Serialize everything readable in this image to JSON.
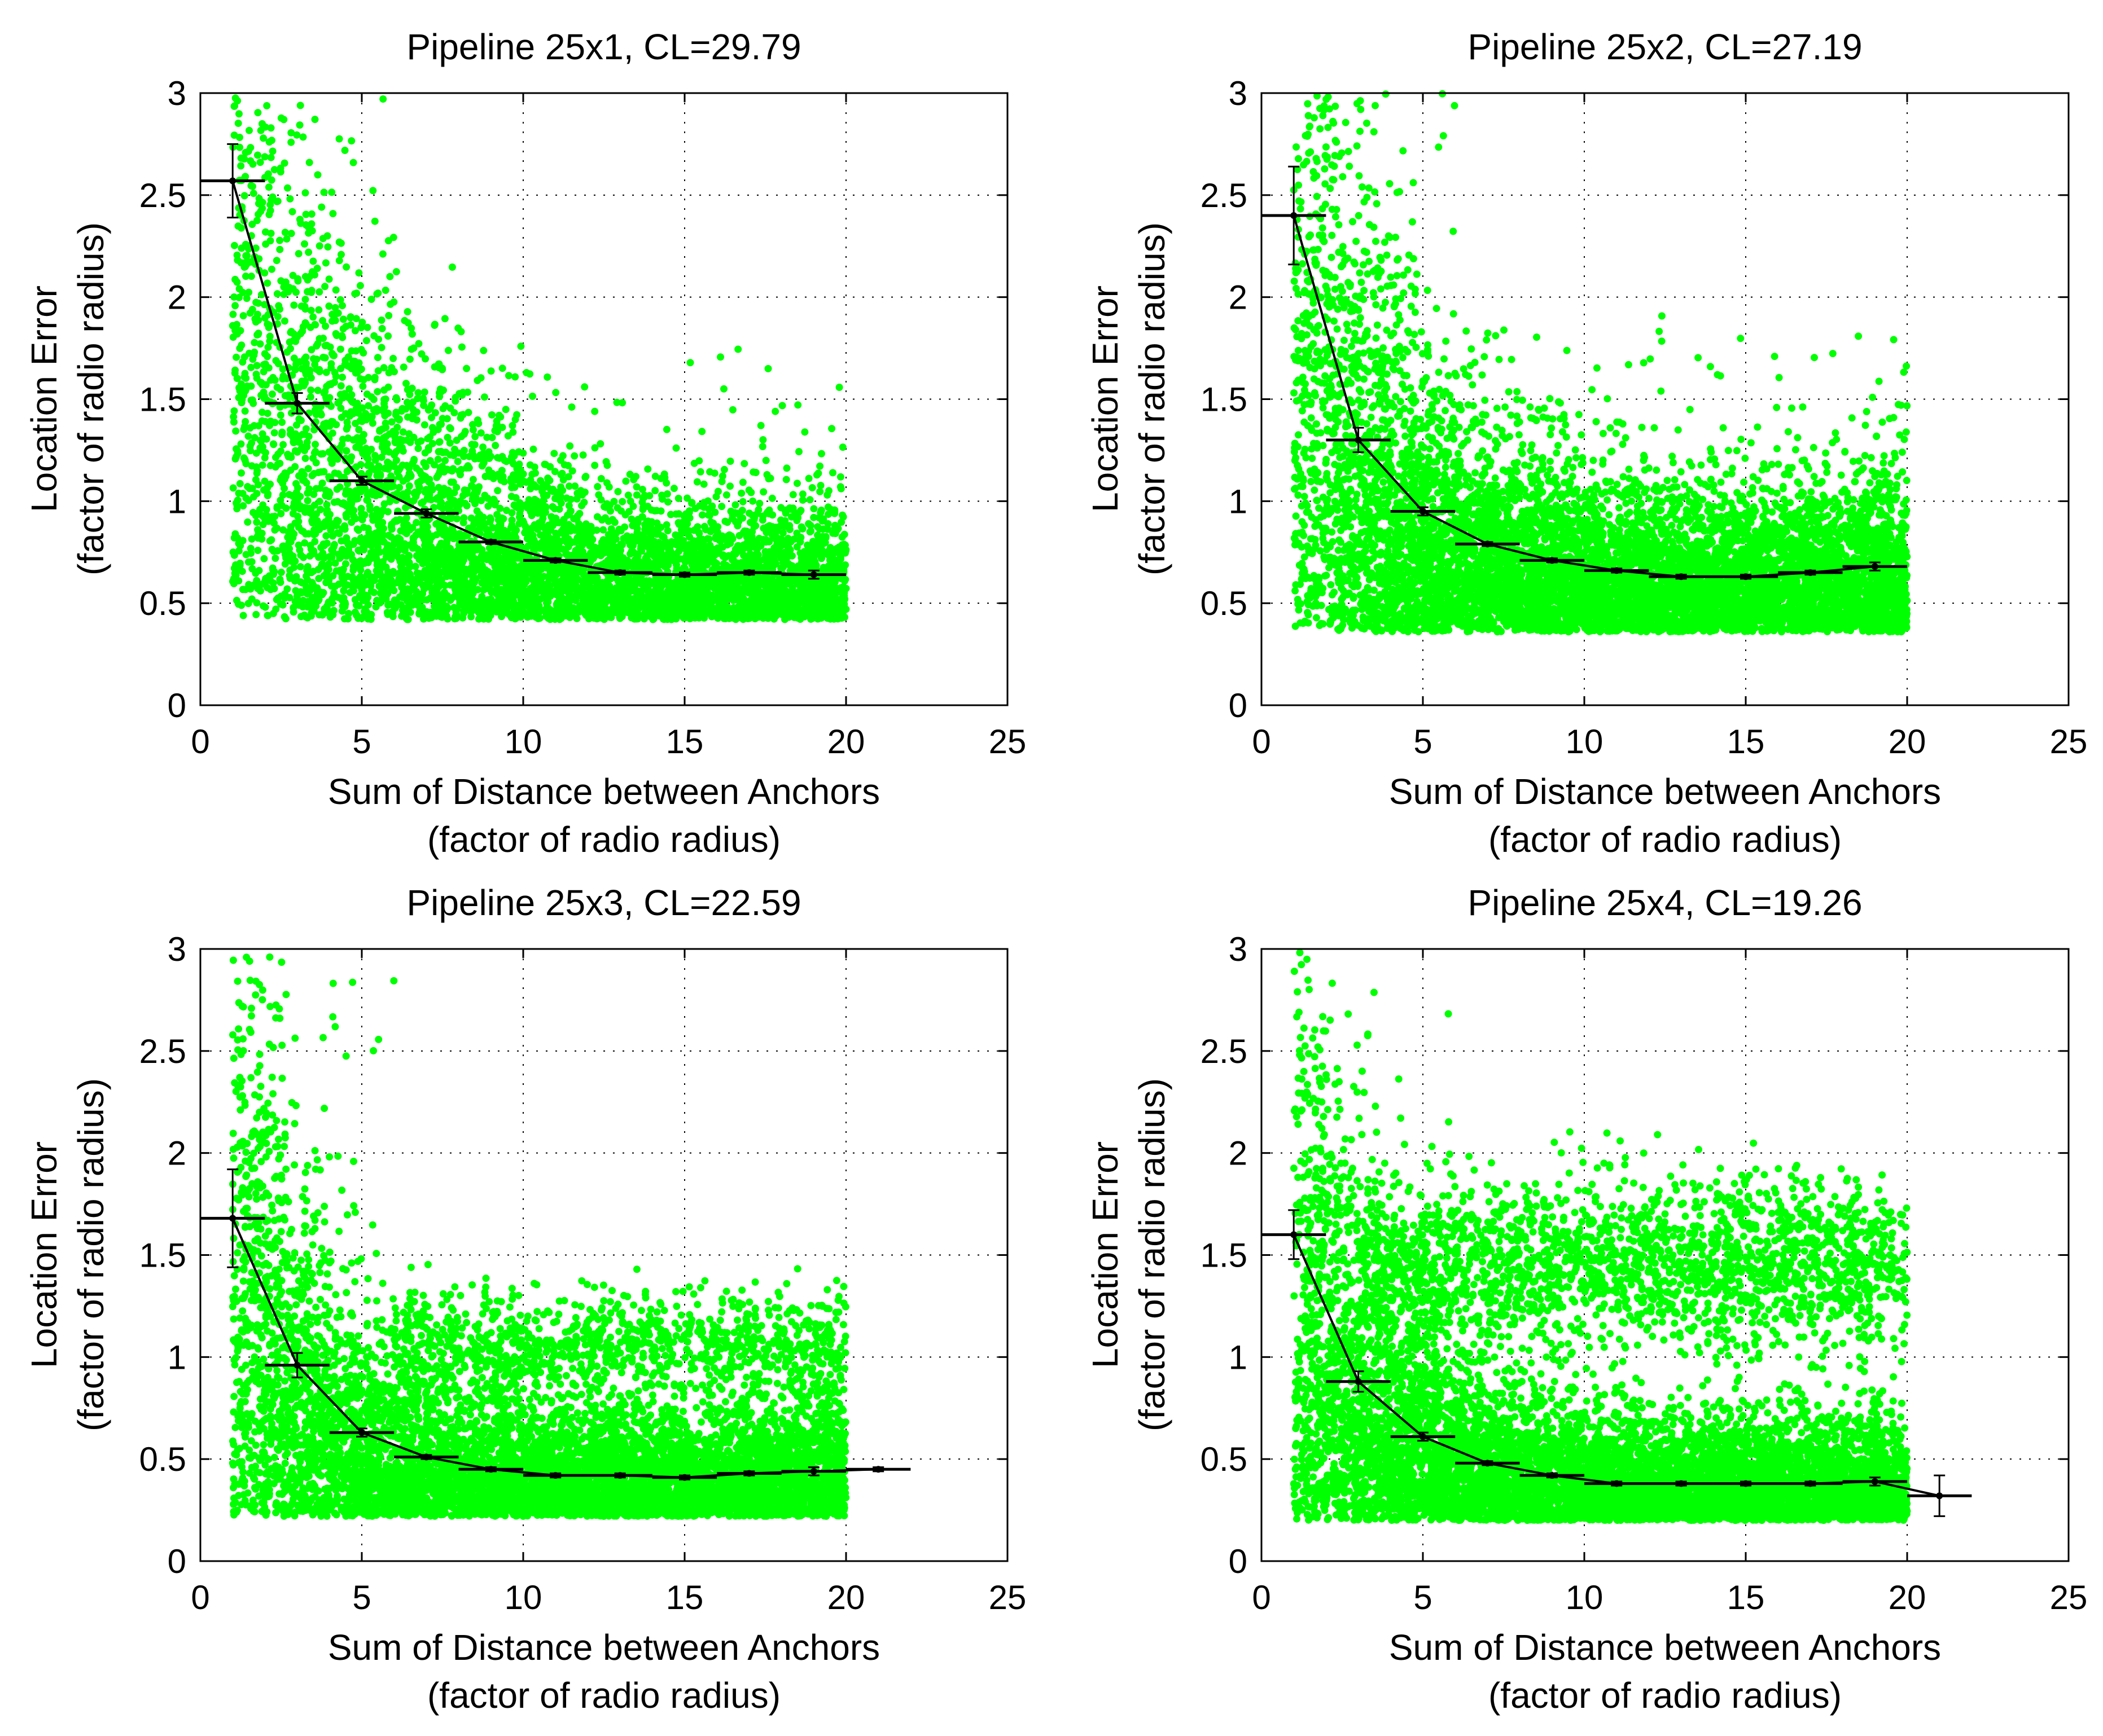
{
  "chart_data": [
    {
      "type": "scatter",
      "title": "Pipeline 25x1, CL=29.79",
      "xlabel": [
        "Sum of Distance between Anchors",
        "(factor of radio radius)"
      ],
      "ylabel": [
        "Location Error",
        "(factor of radio radius)"
      ],
      "xlim": [
        0,
        25
      ],
      "ylim": [
        0,
        3
      ],
      "xticks": [
        0,
        5,
        10,
        15,
        20,
        25
      ],
      "yticks": [
        0,
        0.5,
        1,
        1.5,
        2,
        2.5,
        3
      ],
      "xtick_labels": [
        "0",
        "5",
        "10",
        "15",
        "20",
        "25"
      ],
      "ytick_labels": [
        "0",
        "0.5",
        "1",
        "1.5",
        "2",
        "2.5",
        "3"
      ],
      "grid": "dotted",
      "scatter_color": "#00ff00",
      "scatter_x_range": [
        0.8,
        20
      ],
      "scatter_clusters": [
        {
          "from": 1,
          "to": 20,
          "lower": 0.42,
          "level": 0.6,
          "decay_start": 2.0,
          "decay_rate": 0.28,
          "count": 6000
        }
      ],
      "binned_means": {
        "x": [
          1,
          3,
          5,
          7,
          9,
          11,
          13,
          15,
          17,
          19
        ],
        "y": [
          2.57,
          1.48,
          1.1,
          0.94,
          0.8,
          0.71,
          0.65,
          0.64,
          0.65,
          0.64
        ],
        "y_err": [
          0.18,
          0.05,
          0.02,
          0.02,
          0.01,
          0.01,
          0.01,
          0.01,
          0.01,
          0.02
        ],
        "x_halfwidth": 1
      }
    },
    {
      "type": "scatter",
      "title": "Pipeline 25x2, CL=27.19",
      "xlabel": [
        "Sum of Distance between Anchors",
        "(factor of radio radius)"
      ],
      "ylabel": [
        "Location Error",
        "(factor of radio radius)"
      ],
      "xlim": [
        0,
        25
      ],
      "ylim": [
        0,
        3
      ],
      "xticks": [
        0,
        5,
        10,
        15,
        20,
        25
      ],
      "yticks": [
        0,
        0.5,
        1,
        1.5,
        2,
        2.5,
        3
      ],
      "xtick_labels": [
        "0",
        "5",
        "10",
        "15",
        "20",
        "25"
      ],
      "ytick_labels": [
        "0",
        "0.5",
        "1",
        "1.5",
        "2",
        "2.5",
        "3"
      ],
      "grid": "dotted",
      "scatter_color": "#00ff00",
      "scatter_x_range": [
        0.8,
        20
      ],
      "scatter_clusters": [
        {
          "from": 1,
          "to": 20,
          "lower": 0.36,
          "level": 0.75,
          "decay_start": 2.0,
          "decay_rate": 0.25,
          "count": 8000
        }
      ],
      "binned_means": {
        "x": [
          1,
          3,
          5,
          7,
          9,
          11,
          13,
          15,
          17,
          19
        ],
        "y": [
          2.4,
          1.3,
          0.95,
          0.79,
          0.71,
          0.66,
          0.63,
          0.63,
          0.65,
          0.68
        ],
        "y_err": [
          0.24,
          0.06,
          0.02,
          0.01,
          0.01,
          0.01,
          0.01,
          0.01,
          0.01,
          0.02
        ],
        "x_halfwidth": 1
      }
    },
    {
      "type": "scatter",
      "title": "Pipeline 25x3, CL=22.59",
      "xlabel": [
        "Sum of Distance between Anchors",
        "(factor of radio radius)"
      ],
      "ylabel": [
        "Location Error",
        "(factor of radio radius)"
      ],
      "xlim": [
        0,
        25
      ],
      "ylim": [
        0,
        3
      ],
      "xticks": [
        0,
        5,
        10,
        15,
        20,
        25
      ],
      "yticks": [
        0,
        0.5,
        1,
        1.5,
        2,
        2.5,
        3
      ],
      "xtick_labels": [
        "0",
        "5",
        "10",
        "15",
        "20",
        "25"
      ],
      "ytick_labels": [
        "0",
        "0.5",
        "1",
        "1.5",
        "2",
        "2.5",
        "3"
      ],
      "grid": "dotted",
      "scatter_color": "#00ff00",
      "scatter_x_range": [
        0.8,
        20
      ],
      "scatter_clusters": [
        {
          "from": 1,
          "to": 20,
          "lower": 0.22,
          "level": 0.35,
          "decay_start": 1.5,
          "decay_rate": 0.32,
          "count": 7000
        },
        {
          "from": 6,
          "to": 20,
          "center": 1.05,
          "spread": 0.22,
          "count": 1000
        }
      ],
      "binned_means": {
        "x": [
          1,
          3,
          5,
          7,
          9,
          11,
          13,
          15,
          17,
          19,
          21
        ],
        "y": [
          1.68,
          0.96,
          0.63,
          0.51,
          0.45,
          0.42,
          0.42,
          0.41,
          0.43,
          0.44,
          0.45
        ],
        "y_err": [
          0.24,
          0.06,
          0.02,
          0.01,
          0.01,
          0.01,
          0.01,
          0.01,
          0.01,
          0.02,
          0.01
        ],
        "x_halfwidth": 1
      }
    },
    {
      "type": "scatter",
      "title": "Pipeline 25x4, CL=19.26",
      "xlabel": [
        "Sum of Distance between Anchors",
        "(factor of radio radius)"
      ],
      "ylabel": [
        "Location Error",
        "(factor of radio radius)"
      ],
      "xlim": [
        0,
        25
      ],
      "ylim": [
        0,
        3
      ],
      "xticks": [
        0,
        5,
        10,
        15,
        20,
        25
      ],
      "yticks": [
        0,
        0.5,
        1,
        1.5,
        2,
        2.5,
        3
      ],
      "xtick_labels": [
        "0",
        "5",
        "10",
        "15",
        "20",
        "25"
      ],
      "ytick_labels": [
        "0",
        "0.5",
        "1",
        "1.5",
        "2",
        "2.5",
        "3"
      ],
      "grid": "dotted",
      "scatter_color": "#00ff00",
      "scatter_x_range": [
        0.8,
        20
      ],
      "scatter_clusters": [
        {
          "from": 1,
          "to": 20,
          "lower": 0.2,
          "level": 0.35,
          "decay_start": 1.5,
          "decay_rate": 0.3,
          "count": 8000
        },
        {
          "from": 3,
          "to": 20,
          "center": 1.45,
          "spread": 0.35,
          "count": 2000
        }
      ],
      "binned_means": {
        "x": [
          1,
          3,
          5,
          7,
          9,
          11,
          13,
          15,
          17,
          19,
          21
        ],
        "y": [
          1.6,
          0.88,
          0.61,
          0.48,
          0.42,
          0.38,
          0.38,
          0.38,
          0.38,
          0.39,
          0.32
        ],
        "y_err": [
          0.12,
          0.05,
          0.02,
          0.01,
          0.01,
          0.01,
          0.01,
          0.01,
          0.01,
          0.02,
          0.1
        ],
        "x_halfwidth": 1
      }
    }
  ]
}
